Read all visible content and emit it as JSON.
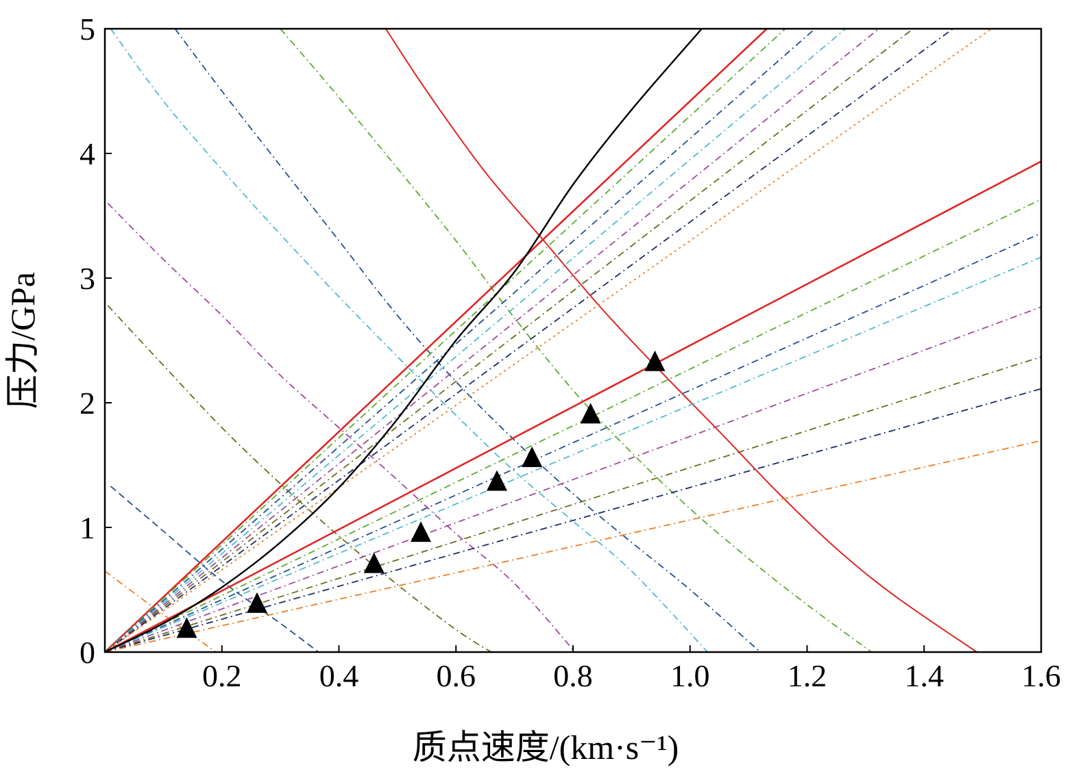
{
  "chart_data": {
    "type": "line",
    "title": "",
    "xlabel": "质点速度/(km·s⁻¹)",
    "ylabel": "压力/GPa",
    "xlim": [
      0,
      1.6
    ],
    "ylim": [
      0,
      5
    ],
    "x_ticks": [
      "0.2",
      "0.4",
      "0.6",
      "0.8",
      "1.0",
      "1.2",
      "1.4",
      "1.6"
    ],
    "y_ticks": [
      "0",
      "1",
      "2",
      "3",
      "4",
      "5"
    ],
    "grid": false,
    "legend": "none",
    "hugoniot_curve": {
      "color": "#000000",
      "points": [
        [
          0,
          0
        ],
        [
          0.1,
          0.23
        ],
        [
          0.2,
          0.52
        ],
        [
          0.3,
          0.88
        ],
        [
          0.4,
          1.32
        ],
        [
          0.5,
          1.87
        ],
        [
          0.6,
          2.5
        ],
        [
          0.7,
          3.05
        ],
        [
          0.8,
          3.75
        ],
        [
          0.9,
          4.35
        ],
        [
          1.02,
          5.0
        ]
      ]
    },
    "rays_upper": [
      {
        "color": "#e02626",
        "style": "solid",
        "slope": 4.42
      },
      {
        "color": "#5aab2b",
        "style": "dashdot",
        "slope": 4.3
      },
      {
        "color": "#1f4e96",
        "style": "dashdot",
        "slope": 4.12
      },
      {
        "color": "#4fb9d3",
        "style": "dashdot",
        "slope": 3.95
      },
      {
        "color": "#a0489c",
        "style": "dashdot",
        "slope": 3.78
      },
      {
        "color": "#6b6b1c",
        "style": "dashdot",
        "slope": 3.62
      },
      {
        "color": "#1a2a66",
        "style": "dashdot",
        "slope": 3.45
      },
      {
        "color": "#ef7d22",
        "style": "dotted",
        "slope": 3.3
      }
    ],
    "rays_lower": [
      {
        "color": "#e02626",
        "style": "solid",
        "slope": 2.46
      },
      {
        "color": "#5aab2b",
        "style": "dashdot",
        "slope": 2.27
      },
      {
        "color": "#1f4e96",
        "style": "dashdot",
        "slope": 2.1
      },
      {
        "color": "#4fb9d3",
        "style": "dashdot",
        "slope": 1.98
      },
      {
        "color": "#a0489c",
        "style": "dashdot",
        "slope": 1.73
      },
      {
        "color": "#6b6b1c",
        "style": "dashdot",
        "slope": 1.48
      },
      {
        "color": "#1a2a66",
        "style": "dashdot",
        "slope": 1.32
      },
      {
        "color": "#ef7d22",
        "style": "dashdot",
        "slope": 1.06
      }
    ],
    "release_curves": [
      {
        "color": "#ef7d22",
        "style": "dashdot",
        "points": [
          [
            0,
            0.65
          ],
          [
            0.1,
            0.3
          ],
          [
            0.19,
            0
          ]
        ]
      },
      {
        "color": "#1f4e96",
        "style": "dashed",
        "points": [
          [
            0.01,
            1.33
          ],
          [
            0.1,
            0.97
          ],
          [
            0.2,
            0.57
          ],
          [
            0.3,
            0.23
          ],
          [
            0.365,
            0
          ]
        ]
      },
      {
        "color": "#6b6b1c",
        "style": "dashdot",
        "points": [
          [
            0.005,
            2.78
          ],
          [
            0.1,
            2.3
          ],
          [
            0.2,
            1.8
          ],
          [
            0.3,
            1.35
          ],
          [
            0.4,
            0.93
          ],
          [
            0.5,
            0.54
          ],
          [
            0.6,
            0.18
          ],
          [
            0.66,
            0
          ]
        ]
      },
      {
        "color": "#a0489c",
        "style": "dashdot",
        "points": [
          [
            0.005,
            3.6
          ],
          [
            0.1,
            3.15
          ],
          [
            0.2,
            2.7
          ],
          [
            0.3,
            2.22
          ],
          [
            0.4,
            1.8
          ],
          [
            0.5,
            1.38
          ],
          [
            0.6,
            0.95
          ],
          [
            0.7,
            0.55
          ],
          [
            0.8,
            0.02
          ]
        ]
      },
      {
        "color": "#4fb9d3",
        "style": "dashdot",
        "points": [
          [
            0.01,
            5.0
          ],
          [
            0.1,
            4.42
          ],
          [
            0.2,
            3.87
          ],
          [
            0.3,
            3.35
          ],
          [
            0.4,
            2.85
          ],
          [
            0.5,
            2.37
          ],
          [
            0.6,
            1.9
          ],
          [
            0.7,
            1.45
          ],
          [
            0.8,
            1.05
          ],
          [
            0.9,
            0.65
          ],
          [
            1.03,
            0
          ]
        ]
      },
      {
        "color": "#1f4e96",
        "style": "dashdot",
        "points": [
          [
            0.12,
            5.0
          ],
          [
            0.2,
            4.5
          ],
          [
            0.3,
            3.9
          ],
          [
            0.4,
            3.3
          ],
          [
            0.5,
            2.7
          ],
          [
            0.6,
            2.17
          ],
          [
            0.7,
            1.7
          ],
          [
            0.8,
            1.27
          ],
          [
            0.9,
            0.88
          ],
          [
            1.0,
            0.5
          ],
          [
            1.12,
            0
          ]
        ]
      },
      {
        "color": "#5aab2b",
        "style": "dashdot",
        "points": [
          [
            0.3,
            5.0
          ],
          [
            0.4,
            4.45
          ],
          [
            0.5,
            3.88
          ],
          [
            0.6,
            3.3
          ],
          [
            0.7,
            2.68
          ],
          [
            0.8,
            2.1
          ],
          [
            0.9,
            1.6
          ],
          [
            1.0,
            1.15
          ],
          [
            1.1,
            0.75
          ],
          [
            1.2,
            0.38
          ],
          [
            1.31,
            0
          ]
        ]
      },
      {
        "color": "#e02626",
        "style": "solid",
        "points": [
          [
            0.48,
            5.0
          ],
          [
            0.55,
            4.5
          ],
          [
            0.65,
            3.85
          ],
          [
            0.75,
            3.3
          ],
          [
            0.85,
            2.75
          ],
          [
            0.95,
            2.25
          ],
          [
            1.05,
            1.77
          ],
          [
            1.15,
            1.28
          ],
          [
            1.25,
            0.83
          ],
          [
            1.35,
            0.45
          ],
          [
            1.49,
            0
          ]
        ]
      }
    ],
    "markers": {
      "shape": "triangle",
      "color": "#000000",
      "points": [
        [
          0.14,
          0.18
        ],
        [
          0.26,
          0.38
        ],
        [
          0.46,
          0.7
        ],
        [
          0.54,
          0.95
        ],
        [
          0.67,
          1.36
        ],
        [
          0.73,
          1.55
        ],
        [
          0.83,
          1.9
        ],
        [
          0.94,
          2.32
        ]
      ]
    }
  }
}
